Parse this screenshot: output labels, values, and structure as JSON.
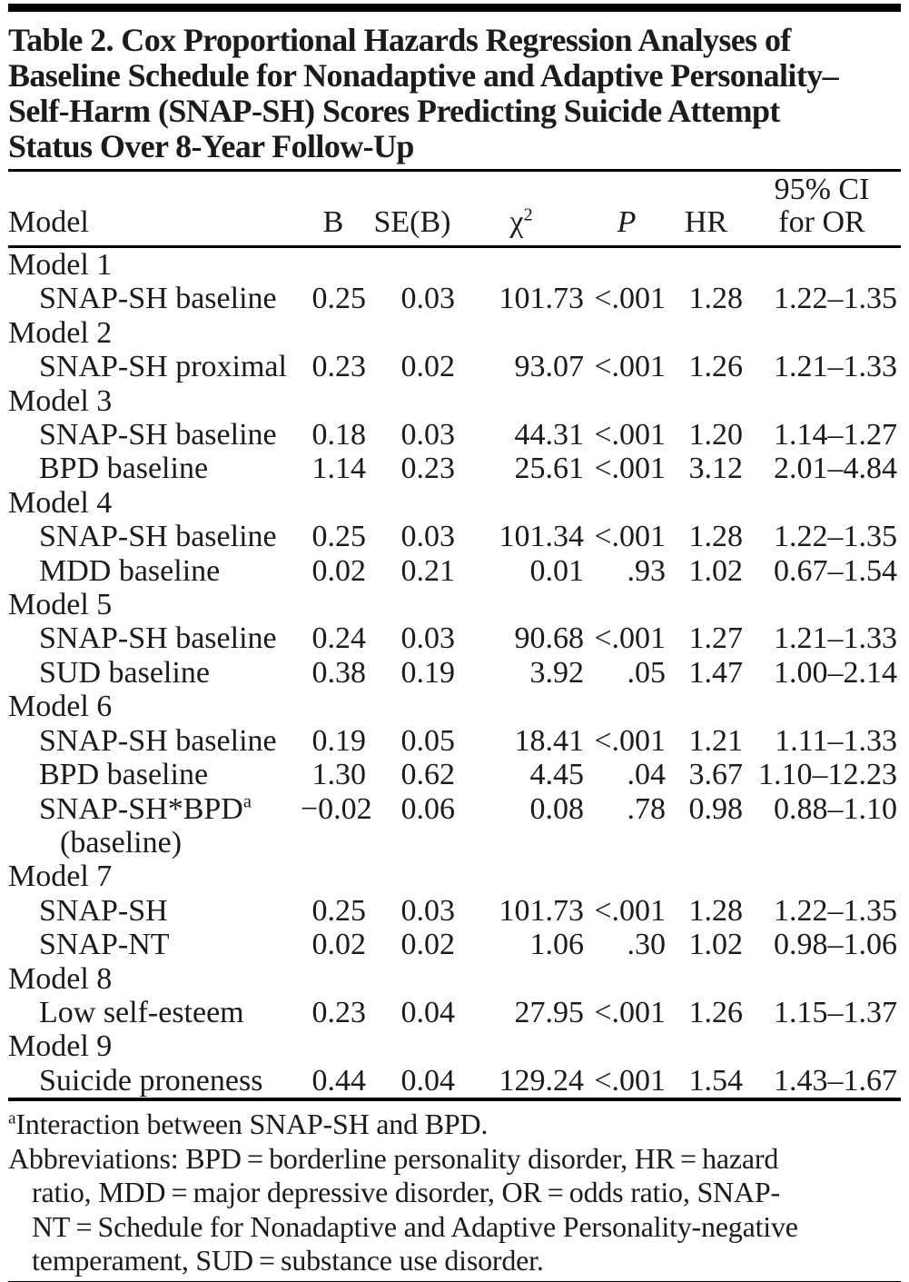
{
  "table": {
    "title_lines": [
      "Table 2. Cox Proportional Hazards Regression Analyses of",
      "Baseline Schedule for Nonadaptive and Adaptive Personality–",
      "Self-Harm (SNAP-SH) Scores Predicting Suicide Attempt",
      "Status Over 8-Year Follow-Up"
    ],
    "columns": [
      {
        "key": "model",
        "label": "Model"
      },
      {
        "key": "b",
        "label": "B"
      },
      {
        "key": "se-b",
        "label": "SE(B)"
      },
      {
        "key": "chi-sq",
        "label": "χ",
        "sup": "2"
      },
      {
        "key": "p",
        "label": "P",
        "italic": true
      },
      {
        "key": "hr",
        "label": "HR"
      },
      {
        "key": "ci",
        "label": "95% CI",
        "label2": "for OR"
      }
    ],
    "rows": [
      {
        "type": "group",
        "label": "Model 1"
      },
      {
        "type": "item",
        "label": "SNAP-SH baseline",
        "values": [
          "0.25",
          "0.03",
          "101.73",
          "<.001",
          "1.28",
          "1.22–1.35"
        ]
      },
      {
        "type": "group",
        "label": "Model 2"
      },
      {
        "type": "item",
        "label": "SNAP-SH proximal",
        "values": [
          "0.23",
          "0.02",
          "93.07",
          "<.001",
          "1.26",
          "1.21–1.33"
        ]
      },
      {
        "type": "group",
        "label": "Model 3"
      },
      {
        "type": "item",
        "label": "SNAP-SH baseline",
        "values": [
          "0.18",
          "0.03",
          "44.31",
          "<.001",
          "1.20",
          "1.14–1.27"
        ]
      },
      {
        "type": "item",
        "label": "BPD baseline",
        "values": [
          "1.14",
          "0.23",
          "25.61",
          "<.001",
          "3.12",
          "2.01–4.84"
        ]
      },
      {
        "type": "group",
        "label": "Model 4"
      },
      {
        "type": "item",
        "label": "SNAP-SH baseline",
        "values": [
          "0.25",
          "0.03",
          "101.34",
          "<.001",
          "1.28",
          "1.22–1.35"
        ]
      },
      {
        "type": "item",
        "label": "MDD baseline",
        "values": [
          "0.02",
          "0.21",
          "0.01",
          ".93",
          "1.02",
          "0.67–1.54"
        ]
      },
      {
        "type": "group",
        "label": "Model 5"
      },
      {
        "type": "item",
        "label": "SNAP-SH baseline",
        "values": [
          "0.24",
          "0.03",
          "90.68",
          "<.001",
          "1.27",
          "1.21–1.33"
        ]
      },
      {
        "type": "item",
        "label": "SUD baseline",
        "values": [
          "0.38",
          "0.19",
          "3.92",
          ".05",
          "1.47",
          "1.00–2.14"
        ]
      },
      {
        "type": "group",
        "label": "Model 6"
      },
      {
        "type": "item",
        "label": "SNAP-SH baseline",
        "values": [
          "0.19",
          "0.05",
          "18.41",
          "<.001",
          "1.21",
          "1.11–1.33"
        ]
      },
      {
        "type": "item",
        "label": "BPD baseline",
        "values": [
          "1.30",
          "0.62",
          "4.45",
          ".04",
          "3.67",
          "1.10–12.23"
        ]
      },
      {
        "type": "item",
        "label": "SNAP-SH*BPD",
        "sup": "a",
        "label2": "(baseline)",
        "values": [
          "−0.02",
          "0.06",
          "0.08",
          ".78",
          "0.98",
          "0.88–1.10"
        ]
      },
      {
        "type": "group",
        "label": "Model 7"
      },
      {
        "type": "item",
        "label": "SNAP-SH",
        "values": [
          "0.25",
          "0.03",
          "101.73",
          "<.001",
          "1.28",
          "1.22–1.35"
        ]
      },
      {
        "type": "item",
        "label": "SNAP-NT",
        "values": [
          "0.02",
          "0.02",
          "1.06",
          ".30",
          "1.02",
          "0.98–1.06"
        ]
      },
      {
        "type": "group",
        "label": "Model 8"
      },
      {
        "type": "item",
        "label": "Low self-esteem",
        "values": [
          "0.23",
          "0.04",
          "27.95",
          "<.001",
          "1.26",
          "1.15–1.37"
        ]
      },
      {
        "type": "group",
        "label": "Model 9"
      },
      {
        "type": "item",
        "label": "Suicide proneness",
        "values": [
          "0.44",
          "0.04",
          "129.24",
          "<.001",
          "1.54",
          "1.43–1.67"
        ]
      }
    ],
    "footnotes": [
      {
        "sup": "a",
        "lines": [
          "Interaction between SNAP-SH and BPD."
        ]
      },
      {
        "lines": [
          "Abbreviations: BPD = borderline personality disorder, HR = hazard",
          "ratio, MDD = major depressive disorder, OR = odds ratio, SNAP-",
          "NT = Schedule for Nonadaptive and Adaptive Personality-negative",
          "temperament, SUD = substance use disorder."
        ]
      }
    ],
    "text_color": "#1b1b1b",
    "rule_color": "#000000"
  }
}
